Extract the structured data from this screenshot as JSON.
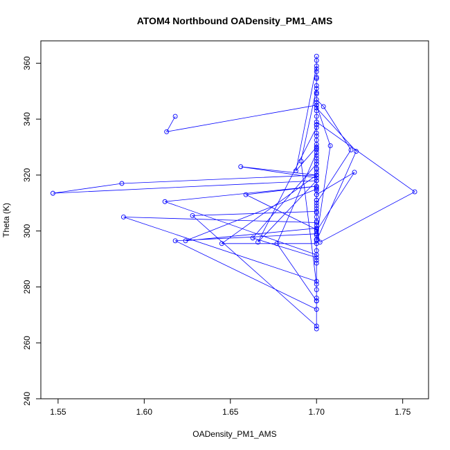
{
  "chart_data": {
    "type": "line",
    "title": "ATOM4 Northbound OADensity_PM1_AMS",
    "xlabel": "OADensity_PM1_AMS",
    "ylabel": "Theta (K)",
    "xlim": [
      1.54,
      1.765
    ],
    "ylim": [
      240,
      368
    ],
    "x_ticks": [
      1.55,
      1.6,
      1.65,
      1.7,
      1.75
    ],
    "x_tick_labels": [
      "1.55",
      "1.60",
      "1.65",
      "1.70",
      "1.75"
    ],
    "y_ticks": [
      240,
      260,
      280,
      300,
      320,
      340,
      360
    ],
    "y_tick_labels": [
      "240",
      "260",
      "280",
      "300",
      "320",
      "340",
      "360"
    ],
    "grid": false,
    "marker": "open-circle",
    "series_color": "#0000ff",
    "series": [
      {
        "x": [
          1.618,
          1.613,
          1.7,
          1.7,
          1.7,
          1.7,
          1.7,
          1.7,
          1.7,
          1.704,
          1.72,
          1.7,
          1.7,
          1.7,
          1.7,
          1.7,
          1.7,
          1.7,
          1.7,
          1.7,
          1.656,
          1.7,
          1.7,
          1.7,
          1.7,
          1.7,
          1.547,
          1.587,
          1.7,
          1.7,
          1.7,
          1.7,
          1.7,
          1.588,
          1.7,
          1.7,
          1.7,
          1.7,
          1.612,
          1.7,
          1.7,
          1.7,
          1.7,
          1.618,
          1.7,
          1.7,
          1.7,
          1.7,
          1.7,
          1.7,
          1.628,
          1.7,
          1.7,
          1.7,
          1.7,
          1.659,
          1.7,
          1.7,
          1.7,
          1.7,
          1.624,
          1.7,
          1.7,
          1.7,
          1.7,
          1.645,
          1.7,
          1.7,
          1.7,
          1.7,
          1.663,
          1.7,
          1.7,
          1.7,
          1.7,
          1.666,
          1.7,
          1.7,
          1.7,
          1.7,
          1.677,
          1.7,
          1.7,
          1.7,
          1.7,
          1.691,
          1.7,
          1.7,
          1.7,
          1.7,
          1.688,
          1.7,
          1.7,
          1.7,
          1.708,
          1.7,
          1.7,
          1.7,
          1.7,
          1.722,
          1.7,
          1.7,
          1.7,
          1.723,
          1.7,
          1.7,
          1.757,
          1.702,
          1.7,
          1.7,
          1.7,
          1.7,
          1.7
        ],
        "y": [
          341.0,
          335.5,
          345.0,
          346.0,
          343.0,
          355.0,
          361.0,
          352.0,
          347.0,
          344.5,
          329.0,
          310.0,
          331.0,
          349.0,
          338.0,
          335.0,
          327.0,
          324.0,
          321.0,
          319.0,
          323.0,
          320.0,
          322.0,
          326.0,
          325.0,
          318.0,
          313.5,
          317.0,
          320.0,
          315.5,
          308.0,
          305.0,
          303.0,
          305.0,
          282.0,
          275.0,
          289.5,
          291.5,
          310.5,
          316.0,
          329.0,
          313.0,
          299.0,
          296.5,
          272.0,
          265.0,
          293.0,
          309.0,
          311.0,
          307.0,
          305.5,
          266.0,
          298.5,
          302.0,
          300.5,
          313.0,
          316.0,
          314.5,
          306.5,
          301.0,
          296.5,
          315.0,
          322.5,
          330.0,
          320.0,
          295.5,
          295.5,
          297.0,
          288.5,
          290.5,
          297.5,
          324.0,
          332.5,
          341.0,
          337.0,
          296.0,
          318.0,
          334.0,
          329.5,
          328.0,
          295.5,
          275.0,
          276.0,
          279.0,
          281.0,
          325.0,
          351.0,
          354.5,
          357.0,
          359.0,
          321.5,
          330.0,
          338.0,
          345.0,
          330.5,
          297.0,
          297.0,
          299.0,
          300.0,
          321.0,
          313.0,
          311.0,
          296.5,
          328.5,
          344.0,
          339.0,
          314.0,
          296.0,
          301.0,
          303.5,
          362.5,
          358.0,
          349.5
        ]
      }
    ]
  }
}
